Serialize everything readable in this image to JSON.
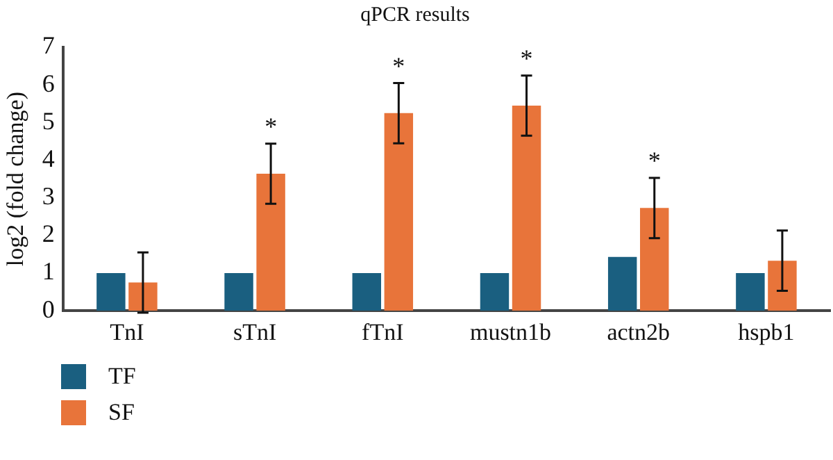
{
  "chart_data": {
    "type": "bar",
    "title": "qPCR results",
    "ylabel": "log2 (fold change)",
    "categories": [
      "TnI",
      "sTnI",
      "fTnI",
      "mustn1b",
      "actn2b",
      "hspb1"
    ],
    "series": [
      {
        "name": "TF",
        "color": "#1a5f80",
        "values": [
          1.0,
          1.0,
          1.0,
          1.0,
          1.43,
          1.0
        ]
      },
      {
        "name": "SF",
        "color": "#e8743a",
        "values": [
          0.75,
          3.64,
          5.25,
          5.45,
          2.73,
          1.33
        ],
        "errors": [
          0.8,
          0.8,
          0.8,
          0.8,
          0.8,
          0.8
        ]
      }
    ],
    "ylim": [
      0,
      7
    ],
    "yticks": [
      0,
      1,
      2,
      3,
      4,
      5,
      6,
      7
    ],
    "grid": false,
    "legend": "bottom left",
    "annotations": [
      {
        "text": "*",
        "x": "sTnI",
        "y": 3.64
      },
      {
        "text": "*",
        "x": "fTnI",
        "y": 5.25
      },
      {
        "text": "*",
        "x": "mustn1b",
        "y": 5.45
      },
      {
        "text": "*",
        "x": "actn2b",
        "y": 2.73
      }
    ]
  }
}
